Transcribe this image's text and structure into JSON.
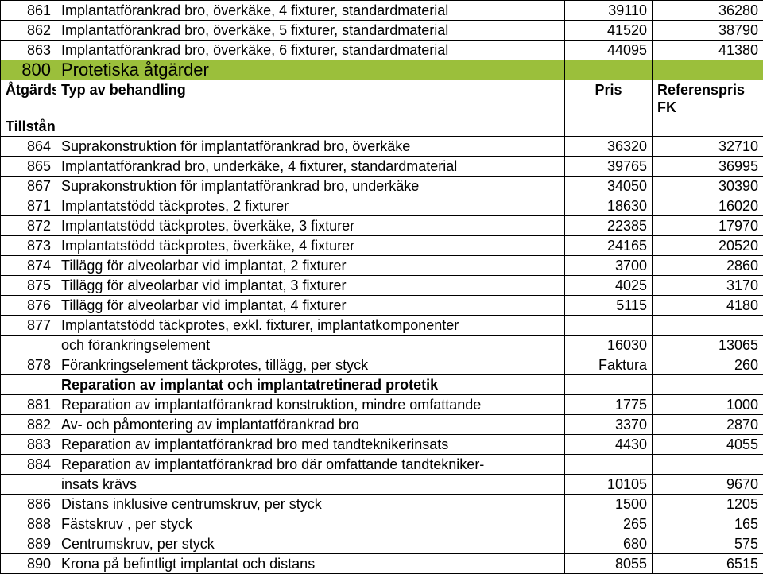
{
  "section": {
    "code": "800",
    "title": "Protetiska åtgärder"
  },
  "headers": {
    "code_line1": "Åtgärdsk",
    "code_line2": "Tillstånd",
    "desc": "Typ av behandling",
    "pris": "Pris",
    "ref": "Referenspris FK"
  },
  "top_rows": [
    {
      "code": "861",
      "desc": "Implantatförankrad bro, överkäke, 4 fixturer, standardmaterial",
      "pris": "39110",
      "ref": "36280"
    },
    {
      "code": "862",
      "desc": "Implantatförankrad bro, överkäke, 5 fixturer, standardmaterial",
      "pris": "41520",
      "ref": "38790"
    },
    {
      "code": "863",
      "desc": "Implantatförankrad bro, överkäke, 6 fixturer, standardmaterial",
      "pris": "44095",
      "ref": "41380"
    }
  ],
  "rows": [
    {
      "code": "864",
      "desc": "Suprakonstruktion för implantatförankrad bro, överkäke",
      "pris": "36320",
      "ref": "32710"
    },
    {
      "code": "865",
      "desc": "Implantatförankrad bro, underkäke, 4 fixturer, standardmaterial",
      "pris": "39765",
      "ref": "36995"
    },
    {
      "code": "867",
      "desc": "Suprakonstruktion för implantatförankrad bro, underkäke",
      "pris": "34050",
      "ref": "30390"
    },
    {
      "code": "871",
      "desc": "Implantatstödd täckprotes, 2 fixturer",
      "pris": "18630",
      "ref": "16020"
    },
    {
      "code": "872",
      "desc": "Implantatstödd täckprotes, överkäke, 3 fixturer",
      "pris": "22385",
      "ref": "17970"
    },
    {
      "code": "873",
      "desc": "Implantatstödd täckprotes, överkäke, 4 fixturer",
      "pris": "24165",
      "ref": "20520"
    },
    {
      "code": "874",
      "desc": "Tillägg för alveolarbar vid implantat, 2 fixturer",
      "pris": "3700",
      "ref": "2860"
    },
    {
      "code": "875",
      "desc": "Tillägg för alveolarbar vid implantat, 3 fixturer",
      "pris": "4025",
      "ref": "3170"
    },
    {
      "code": "876",
      "desc": "Tillägg för alveolarbar vid implantat, 4 fixturer",
      "pris": "5115",
      "ref": "4180"
    },
    {
      "code": "877",
      "desc": "Implantatstödd täckprotes, exkl. fixturer, implantatkomponenter",
      "pris": "",
      "ref": ""
    },
    {
      "code": "",
      "desc": "och förankringselement",
      "pris": "16030",
      "ref": "13065"
    },
    {
      "code": "878",
      "desc": "Förankringselement täckprotes, tillägg, per styck",
      "pris": "Faktura",
      "ref": "260"
    },
    {
      "code": "",
      "desc": "Reparation av implantat och implantatretinerad protetik",
      "pris": "",
      "ref": "",
      "bold": true
    },
    {
      "code": "881",
      "desc": "Reparation av implantatförankrad konstruktion, mindre omfattande",
      "pris": "1775",
      "ref": "1000"
    },
    {
      "code": "882",
      "desc": "Av- och påmontering av implantatförankrad bro",
      "pris": "3370",
      "ref": "2870"
    },
    {
      "code": "883",
      "desc": "Reparation av implantatförankrad bro med tandteknikerinsats",
      "pris": "4430",
      "ref": "4055"
    },
    {
      "code": "884",
      "desc": "Reparation av implantatförankrad bro där omfattande tandtekniker-",
      "pris": "",
      "ref": ""
    },
    {
      "code": "",
      "desc": "insats krävs",
      "pris": "10105",
      "ref": "9670"
    },
    {
      "code": "886",
      "desc": "Distans inklusive centrumskruv, per styck",
      "pris": "1500",
      "ref": "1205"
    },
    {
      "code": "888",
      "desc": "Fästskruv , per styck",
      "pris": "265",
      "ref": "165"
    },
    {
      "code": "889",
      "desc": "Centrumskruv, per styck",
      "pris": "680",
      "ref": "575"
    },
    {
      "code": "890",
      "desc": "Krona på befintligt implantat och distans",
      "pris": "8055",
      "ref": "6515"
    }
  ]
}
